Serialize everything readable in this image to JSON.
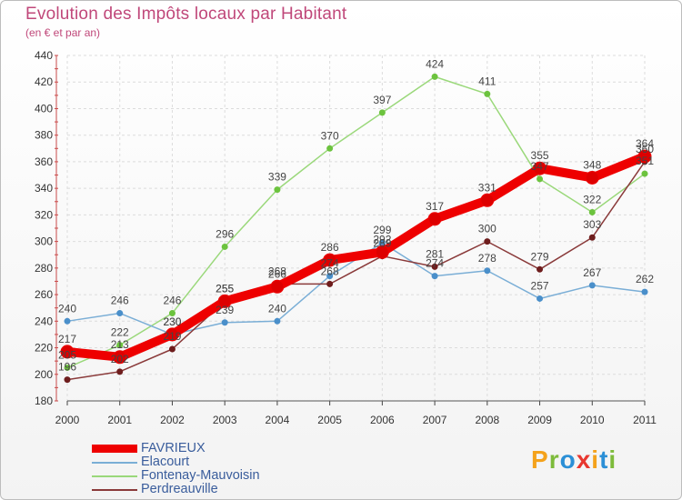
{
  "header": {
    "title": "Evolution des Impôts locaux par Habitant",
    "subtitle": "(en € et par an)"
  },
  "logo": {
    "text": "Proxiti",
    "letters": [
      {
        "ch": "P",
        "color": "#f4a21b"
      },
      {
        "ch": "r",
        "color": "#7dbb3a"
      },
      {
        "ch": "o",
        "color": "#2b8fd6"
      },
      {
        "ch": "x",
        "color": "#e8372f"
      },
      {
        "ch": "i",
        "color": "#f4a21b"
      },
      {
        "ch": "t",
        "color": "#2b8fd6"
      },
      {
        "ch": "i",
        "color": "#7dbb3a"
      }
    ]
  },
  "chart_data": {
    "type": "line",
    "x": [
      "2000",
      "2001",
      "2002",
      "2003",
      "2004",
      "2005",
      "2006",
      "2007",
      "2008",
      "2009",
      "2010",
      "2011"
    ],
    "ylim": [
      180,
      440
    ],
    "yticks": [
      180,
      200,
      220,
      240,
      260,
      280,
      300,
      320,
      340,
      360,
      380,
      400,
      420,
      440
    ],
    "grid": true,
    "legend_position": "bottom-left",
    "series": [
      {
        "name": "Fontenay-Mauvoisin",
        "color": "#9ad87a",
        "marker": "#6cc33e",
        "values": [
          205,
          222,
          246,
          296,
          339,
          370,
          397,
          424,
          411,
          347,
          322,
          351
        ]
      },
      {
        "name": "Elacourt",
        "color": "#7aaed6",
        "marker": "#4a8fca",
        "values": [
          240,
          246,
          230,
          239,
          240,
          274,
          299,
          274,
          278,
          257,
          267,
          262
        ]
      },
      {
        "name": "Perdreauville",
        "color": "#8a3a3a",
        "marker": "#6e1d1d",
        "values": [
          196,
          202,
          219,
          255,
          268,
          268,
          289,
          281,
          300,
          279,
          303,
          360
        ]
      },
      {
        "name": "FAVRIEUX",
        "color": "#ee0000",
        "marker": "#dd0000",
        "values": [
          217,
          213,
          230,
          255,
          266,
          286,
          292,
          317,
          331,
          355,
          348,
          364
        ]
      }
    ],
    "legend_order": [
      "FAVRIEUX",
      "Elacourt",
      "Fontenay-Mauvoisin",
      "Perdreauville"
    ]
  }
}
